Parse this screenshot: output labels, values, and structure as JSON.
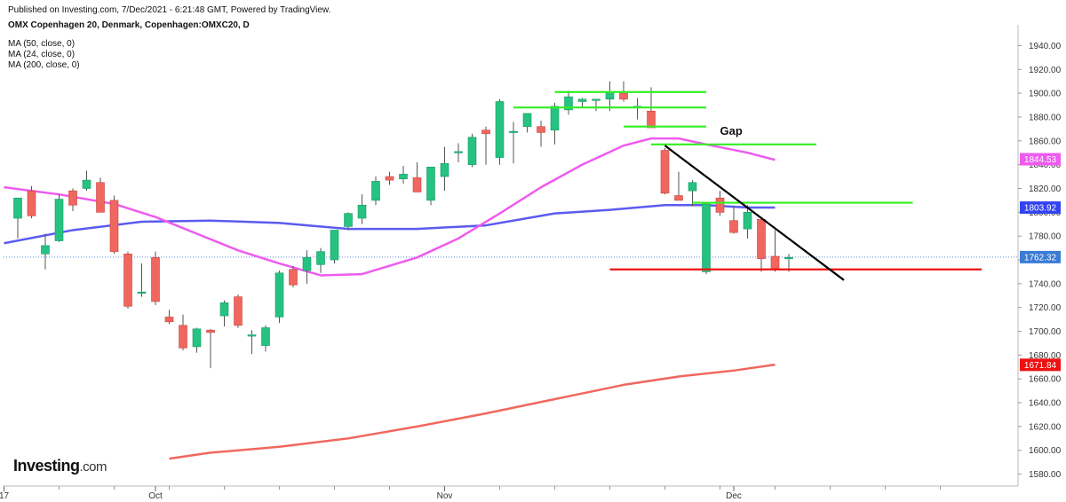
{
  "header": {
    "published": "Published on Investing.com, 7/Dec/2021 - 6:21:48 GMT, Powered by TradingView.",
    "symbol": "OMX Copenhagen 20, Denmark, Copenhagen:OMXC20, D"
  },
  "indicators": [
    {
      "label": "MA (50, close, 0)",
      "color": "#5b5bf0"
    },
    {
      "label": "MA (24, close, 0)",
      "color": "#ee5bee"
    },
    {
      "label": "MA (200, close, 0)",
      "color": "#f0675f"
    }
  ],
  "logo": {
    "brand": "Investing",
    "suffix": ".com"
  },
  "annotation": {
    "gap_label": "Gap"
  },
  "colors": {
    "up": "#26c281",
    "down": "#f0675f",
    "wick": "#555555",
    "ma50": "#5b5bf0",
    "ma24": "#ee5bee",
    "ma200": "#f0675f",
    "level_green": "#33ee22",
    "support_red": "#ee1111",
    "trendline": "#000000"
  },
  "chart_data": {
    "type": "candlestick",
    "title": "OMX Copenhagen 20, Denmark, Copenhagen:OMXC20, D",
    "ylim": [
      1570,
      1950
    ],
    "y_ticks": [
      1580,
      1600,
      1620,
      1640,
      1660,
      1680,
      1700,
      1720,
      1740,
      1760,
      1780,
      1800,
      1820,
      1840,
      1860,
      1880,
      1900,
      1920,
      1940
    ],
    "x_labels": [
      {
        "label": "17",
        "bar": -1
      },
      {
        "label": "Oct",
        "bar": 10
      },
      {
        "label": "Nov",
        "bar": 31
      },
      {
        "label": "Dec",
        "bar": 52
      }
    ],
    "candles": [
      {
        "o": 1795,
        "h": 1812,
        "l": 1778,
        "c": 1812
      },
      {
        "o": 1818,
        "h": 1822,
        "l": 1795,
        "c": 1797
      },
      {
        "o": 1765,
        "h": 1782,
        "l": 1752,
        "c": 1772
      },
      {
        "o": 1776,
        "h": 1815,
        "l": 1775,
        "c": 1811
      },
      {
        "o": 1818,
        "h": 1820,
        "l": 1801,
        "c": 1806
      },
      {
        "o": 1820,
        "h": 1835,
        "l": 1818,
        "c": 1827
      },
      {
        "o": 1825,
        "h": 1829,
        "l": 1800,
        "c": 1800
      },
      {
        "o": 1810,
        "h": 1814,
        "l": 1765,
        "c": 1767
      },
      {
        "o": 1765,
        "h": 1767,
        "l": 1719,
        "c": 1721
      },
      {
        "o": 1732,
        "h": 1757,
        "l": 1729,
        "c": 1733
      },
      {
        "o": 1762,
        "h": 1767,
        "l": 1722,
        "c": 1725
      },
      {
        "o": 1712,
        "h": 1718,
        "l": 1706,
        "c": 1708
      },
      {
        "o": 1705,
        "h": 1714,
        "l": 1684,
        "c": 1686
      },
      {
        "o": 1687,
        "h": 1703,
        "l": 1682,
        "c": 1702
      },
      {
        "o": 1701,
        "h": 1702,
        "l": 1669,
        "c": 1699
      },
      {
        "o": 1713,
        "h": 1726,
        "l": 1704,
        "c": 1724
      },
      {
        "o": 1729,
        "h": 1731,
        "l": 1703,
        "c": 1705
      },
      {
        "o": 1697,
        "h": 1701,
        "l": 1681,
        "c": 1697
      },
      {
        "o": 1688,
        "h": 1705,
        "l": 1683,
        "c": 1703
      },
      {
        "o": 1712,
        "h": 1751,
        "l": 1707,
        "c": 1749
      },
      {
        "o": 1752,
        "h": 1755,
        "l": 1737,
        "c": 1739
      },
      {
        "o": 1751,
        "h": 1768,
        "l": 1740,
        "c": 1762
      },
      {
        "o": 1756,
        "h": 1770,
        "l": 1749,
        "c": 1767
      },
      {
        "o": 1760,
        "h": 1785,
        "l": 1757,
        "c": 1785
      },
      {
        "o": 1788,
        "h": 1800,
        "l": 1785,
        "c": 1799
      },
      {
        "o": 1795,
        "h": 1815,
        "l": 1790,
        "c": 1806
      },
      {
        "o": 1810,
        "h": 1830,
        "l": 1806,
        "c": 1826
      },
      {
        "o": 1830,
        "h": 1834,
        "l": 1823,
        "c": 1827
      },
      {
        "o": 1828,
        "h": 1839,
        "l": 1824,
        "c": 1832
      },
      {
        "o": 1829,
        "h": 1842,
        "l": 1817,
        "c": 1817
      },
      {
        "o": 1810,
        "h": 1837,
        "l": 1806,
        "c": 1838
      },
      {
        "o": 1830,
        "h": 1855,
        "l": 1818,
        "c": 1841
      },
      {
        "o": 1850,
        "h": 1858,
        "l": 1842,
        "c": 1851
      },
      {
        "o": 1840,
        "h": 1866,
        "l": 1838,
        "c": 1863
      },
      {
        "o": 1869,
        "h": 1872,
        "l": 1840,
        "c": 1866
      },
      {
        "o": 1846,
        "h": 1895,
        "l": 1840,
        "c": 1893
      },
      {
        "o": 1867,
        "h": 1876,
        "l": 1841,
        "c": 1868
      },
      {
        "o": 1872,
        "h": 1880,
        "l": 1867,
        "c": 1883
      },
      {
        "o": 1872,
        "h": 1877,
        "l": 1855,
        "c": 1867
      },
      {
        "o": 1869,
        "h": 1892,
        "l": 1857,
        "c": 1889
      },
      {
        "o": 1886,
        "h": 1902,
        "l": 1882,
        "c": 1897
      },
      {
        "o": 1893,
        "h": 1896,
        "l": 1888,
        "c": 1895
      },
      {
        "o": 1895,
        "h": 1895,
        "l": 1885,
        "c": 1895
      },
      {
        "o": 1895,
        "h": 1910,
        "l": 1885,
        "c": 1901
      },
      {
        "o": 1900,
        "h": 1910,
        "l": 1893,
        "c": 1895
      },
      {
        "o": 1888,
        "h": 1896,
        "l": 1878,
        "c": 1889
      },
      {
        "o": 1885,
        "h": 1905,
        "l": 1871,
        "c": 1871
      },
      {
        "o": 1852,
        "h": 1854,
        "l": 1815,
        "c": 1816
      },
      {
        "o": 1814,
        "h": 1834,
        "l": 1810,
        "c": 1810
      },
      {
        "o": 1818,
        "h": 1827,
        "l": 1805,
        "c": 1825
      },
      {
        "o": 1750,
        "h": 1808,
        "l": 1748,
        "c": 1807
      },
      {
        "o": 1812,
        "h": 1818,
        "l": 1797,
        "c": 1800
      },
      {
        "o": 1793,
        "h": 1805,
        "l": 1782,
        "c": 1783
      },
      {
        "o": 1786,
        "h": 1806,
        "l": 1778,
        "c": 1800
      },
      {
        "o": 1794,
        "h": 1793,
        "l": 1750,
        "c": 1761
      },
      {
        "o": 1763,
        "h": 1785,
        "l": 1750,
        "c": 1752
      },
      {
        "o": 1762,
        "h": 1765,
        "l": 1750,
        "c": 1762
      }
    ],
    "series": [
      {
        "name": "MA (50, close, 0)",
        "points": [
          [
            -1,
            1774
          ],
          [
            4,
            1785
          ],
          [
            9,
            1792
          ],
          [
            14,
            1793
          ],
          [
            19,
            1791
          ],
          [
            24,
            1786
          ],
          [
            29,
            1786
          ],
          [
            34,
            1789
          ],
          [
            39,
            1799
          ],
          [
            43,
            1802
          ],
          [
            47,
            1806
          ],
          [
            50,
            1806
          ],
          [
            53,
            1804
          ],
          [
            55,
            1804
          ]
        ]
      },
      {
        "name": "MA (24, close, 0)",
        "points": [
          [
            -1,
            1821
          ],
          [
            3,
            1815
          ],
          [
            7,
            1807
          ],
          [
            10,
            1796
          ],
          [
            13,
            1782
          ],
          [
            16,
            1768
          ],
          [
            19,
            1757
          ],
          [
            22,
            1747
          ],
          [
            25,
            1748
          ],
          [
            29,
            1762
          ],
          [
            32,
            1778
          ],
          [
            35,
            1799
          ],
          [
            38,
            1821
          ],
          [
            41,
            1840
          ],
          [
            44,
            1856
          ],
          [
            46,
            1862
          ],
          [
            48,
            1862
          ],
          [
            50,
            1857
          ],
          [
            53,
            1850
          ],
          [
            55,
            1844
          ]
        ]
      },
      {
        "name": "MA (200, close, 0)",
        "points": [
          [
            11,
            1593
          ],
          [
            14,
            1598
          ],
          [
            19,
            1603
          ],
          [
            24,
            1610
          ],
          [
            29,
            1620
          ],
          [
            34,
            1631
          ],
          [
            39,
            1643
          ],
          [
            44,
            1655
          ],
          [
            48,
            1662
          ],
          [
            52,
            1667
          ],
          [
            55,
            1672
          ]
        ]
      }
    ],
    "last_values": [
      {
        "series": "MA (24, close, 0)",
        "value": "1844.53",
        "color": "#ee5bee"
      },
      {
        "series": "MA (50, close, 0)",
        "value": "1803.92",
        "color": "#3344ee"
      },
      {
        "series": "price",
        "value": "1762.32",
        "color": "#3a7bd5"
      },
      {
        "series": "MA (200, close, 0)",
        "value": "1671.84",
        "color": "#ee1111"
      }
    ],
    "current_price": 1762.32,
    "levels": [
      {
        "type": "resistance",
        "from_bar": 39,
        "to_bar": 50,
        "y": 1901
      },
      {
        "type": "resistance",
        "from_bar": 36,
        "to_bar": 50,
        "y": 1888
      },
      {
        "type": "resistance",
        "from_bar": 44,
        "to_bar": 50,
        "y": 1872
      },
      {
        "type": "resistance",
        "from_bar": 46,
        "to_bar": 58,
        "y": 1857
      },
      {
        "type": "resistance",
        "from_bar": 49,
        "to_bar": 65,
        "y": 1808
      },
      {
        "type": "support",
        "from_bar": 43,
        "to_bar": 70,
        "y": 1752
      }
    ],
    "trendline": {
      "from": [
        47,
        1856
      ],
      "to": [
        60,
        1743
      ]
    },
    "gap_label_at": {
      "bar": 51,
      "y": 1865
    }
  }
}
